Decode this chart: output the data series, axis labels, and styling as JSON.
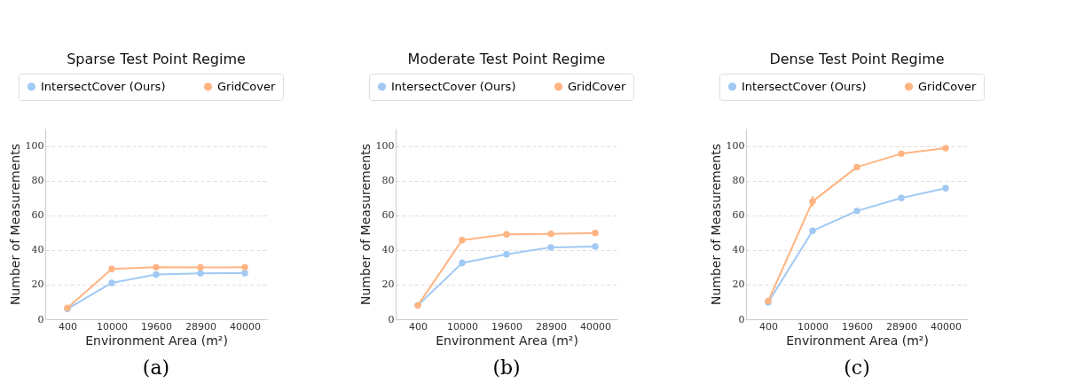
{
  "chart_data": [
    {
      "type": "line",
      "title": "Sparse Test Point Regime",
      "xlabel": "Environment Area (m²)",
      "ylabel": "Number of Measurements",
      "categories": [
        "400",
        "10000",
        "19600",
        "28900",
        "40000"
      ],
      "ylim": [
        0,
        110
      ],
      "yticks": [
        0,
        20,
        40,
        60,
        80,
        100
      ],
      "grid": "y",
      "legend": "top",
      "marker": "circle",
      "line_style": "solid",
      "annotations": [
        "(a)"
      ],
      "series": [
        {
          "name": "IntersectCover (Ours)",
          "color": "#a1c9f4",
          "values": [
            6,
            21,
            25.8,
            26.5,
            26.6
          ]
        },
        {
          "name": "GridCover",
          "color": "#ffb482",
          "values": [
            6.5,
            29,
            30,
            29.9,
            30
          ]
        }
      ]
    },
    {
      "type": "line",
      "title": "Moderate Test Point Regime",
      "xlabel": "Environment Area (m²)",
      "ylabel": "Number of Measurements",
      "categories": [
        "400",
        "10000",
        "19600",
        "28900",
        "40000"
      ],
      "ylim": [
        0,
        110
      ],
      "yticks": [
        0,
        20,
        40,
        60,
        80,
        100
      ],
      "grid": "y",
      "legend": "top",
      "marker": "circle",
      "line_style": "solid",
      "annotations": [
        "(b)"
      ],
      "series": [
        {
          "name": "IntersectCover (Ours)",
          "color": "#a1c9f4",
          "values": [
            8,
            32.5,
            37.5,
            41.5,
            42
          ],
          "errors": [
            null,
            2,
            1.5,
            1,
            null
          ]
        },
        {
          "name": "GridCover",
          "color": "#ffb482",
          "values": [
            8,
            45.7,
            49,
            49.3,
            49.8
          ]
        }
      ]
    },
    {
      "type": "line",
      "title": "Dense Test Point Regime",
      "xlabel": "Environment Area (m²)",
      "ylabel": "Number of Measurements",
      "categories": [
        "400",
        "10000",
        "19600",
        "28900",
        "40000"
      ],
      "ylim": [
        0,
        110
      ],
      "yticks": [
        0,
        20,
        40,
        60,
        80,
        100
      ],
      "grid": "y",
      "legend": "top",
      "marker": "circle",
      "line_style": "solid",
      "annotations": [
        "(c)"
      ],
      "series": [
        {
          "name": "IntersectCover (Ours)",
          "color": "#a1c9f4",
          "values": [
            9.7,
            51,
            62.5,
            70,
            75.6
          ],
          "errors": [
            null,
            1.5,
            1,
            1.5,
            1
          ]
        },
        {
          "name": "GridCover",
          "color": "#ffb482",
          "values": [
            10.5,
            68,
            87.8,
            95.5,
            98.7
          ],
          "errors": [
            null,
            3,
            1.5,
            1.5,
            null
          ]
        }
      ]
    }
  ]
}
